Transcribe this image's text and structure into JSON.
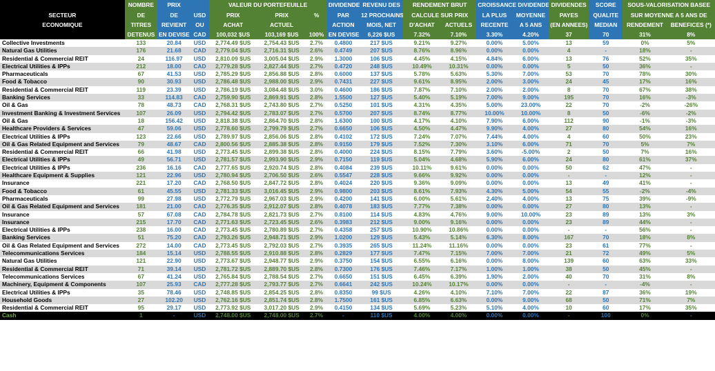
{
  "colors": {
    "green": "#548235",
    "blue": "#2e75b6",
    "header_black": "#000000",
    "row_gray": "#d9d9d9",
    "cash_label": "#70ad47"
  },
  "header": {
    "secteur": [
      "SECTEUR",
      "ECONOMIQUE"
    ],
    "nombre": [
      "NOMBRE",
      "DE",
      "TITRES",
      "DETENUS"
    ],
    "prix": [
      "PRIX",
      "DE",
      "REVIENT",
      "EN DEVISE"
    ],
    "usd": [
      "USD",
      "OU",
      "CAD"
    ],
    "valeur_group": "VALEUR DU PORTEFEUILLE",
    "prix_achat": [
      "PRIX",
      "ACHAT",
      "100,032 $US"
    ],
    "prix_actuel": [
      "PRIX",
      "ACTUEL",
      "103,169 $US"
    ],
    "pct": [
      "%",
      "100%"
    ],
    "dividende": [
      "DIVIDENDE",
      "PAR",
      "ACTION",
      "EN DEVISE"
    ],
    "revenu": [
      "REVENU DES",
      "12 PROCHAINS",
      "MOIS, NET",
      "6,226 $US"
    ],
    "rendement_group": "RENDEMENT BRUT",
    "rendement_sub": "CALCULE SUR PRIX",
    "rend_achat": [
      "D'ACHAT",
      "7.32%"
    ],
    "rend_actuels": [
      "ACTUELS",
      "7.10%"
    ],
    "croissance_group": "CROISSANCE DIVIDENDES",
    "croissance_recente": [
      "LA PLUS",
      "RECENTE",
      "3.30%"
    ],
    "croissance_moy": [
      "MOYENNE",
      "A 5 ANS",
      "4.20%"
    ],
    "div_payes": [
      "DIVIDENDES",
      "PAYES",
      "(EN ANNEES)",
      "37"
    ],
    "score": [
      "SCORE",
      "QUALITE",
      "MEDIAN",
      "70"
    ],
    "souseval_group": "SOUS-VALORISATION BASEE",
    "souseval_sub": "SUR MOYENNE A 5 ANS DE",
    "sv_rend": [
      "RENDEMENT",
      "31%"
    ],
    "sv_benef": [
      "BENEFICES (*)",
      "8%"
    ]
  },
  "rows": [
    [
      "Collective Investments",
      "133",
      "20.84",
      "USD",
      "2,774.49 $US",
      "2,754.43 $US",
      "2.7%",
      "0.4800",
      "217 $US",
      "9.21%",
      "9.27%",
      "0.00%",
      "5.00%",
      "13",
      "59",
      "0%",
      "5%"
    ],
    [
      "Natural Gas Utilities",
      "176",
      "21.68",
      "CAD",
      "2,779.04 $US",
      "2,716.31 $US",
      "2.6%",
      "0.4749",
      "207 $US",
      "8.76%",
      "8.96%",
      "0.00%",
      "0.00%",
      "4",
      "-",
      "18%",
      "-"
    ],
    [
      "Residential & Commercial REIT",
      "24",
      "116.97",
      "USD",
      "2,810.09 $US",
      "3,005.04 $US",
      "2.9%",
      "1.3000",
      "106 $US",
      "4.45%",
      "4.15%",
      "4.84%",
      "6.00%",
      "13",
      "76",
      "52%",
      "35%"
    ],
    [
      "Electrical Utilities & IPPs",
      "212",
      "18.00",
      "CAD",
      "2,779.28 $US",
      "2,827.44 $US",
      "2.7%",
      "0.4720",
      "248 $US",
      "10.49%",
      "10.31%",
      "0.00%",
      "0.00%",
      "5",
      "50",
      "36%",
      "-"
    ],
    [
      "Pharmaceuticals",
      "67",
      "41.53",
      "USD",
      "2,785.29 $US",
      "2,856.88 $US",
      "2.8%",
      "0.6000",
      "137 $US",
      "5.78%",
      "5.63%",
      "5.30%",
      "7.00%",
      "53",
      "70",
      "78%",
      "30%"
    ],
    [
      "Food & Tobacco",
      "90",
      "30.93",
      "USD",
      "2,786.48 $US",
      "2,988.00 $US",
      "2.9%",
      "0.7431",
      "227 $US",
      "9.61%",
      "8.95%",
      "2.00%",
      "3.00%",
      "24",
      "45",
      "17%",
      "16%"
    ],
    [
      "Residential & Commercial REIT",
      "119",
      "23.39",
      "USD",
      "2,786.19 $US",
      "3,084.48 $US",
      "3.0%",
      "0.4600",
      "186 $US",
      "7.87%",
      "7.10%",
      "2.00%",
      "2.00%",
      "8",
      "70",
      "67%",
      "38%"
    ],
    [
      "Banking Services",
      "33",
      "114.83",
      "CAD",
      "2,759.90 $US",
      "2,869.91 $US",
      "2.8%",
      "1.5500",
      "127 $US",
      "5.40%",
      "5.19%",
      "7.00%",
      "9.00%",
      "195",
      "70",
      "16%",
      "-3%"
    ],
    [
      "Oil & Gas",
      "78",
      "48.73",
      "CAD",
      "2,768.31 $US",
      "2,743.80 $US",
      "2.7%",
      "0.5250",
      "101 $US",
      "4.31%",
      "4.35%",
      "5.00%",
      "23.00%",
      "22",
      "70",
      "-2%",
      "-26%"
    ],
    [
      "Investment Banking & Investment Services",
      "107",
      "26.09",
      "USD",
      "2,794.42 $US",
      "2,783.07 $US",
      "2.7%",
      "0.5700",
      "207 $US",
      "8.74%",
      "8.77%",
      "10.00%",
      "10.00%",
      "8",
      "50",
      "-6%",
      "-2%"
    ],
    [
      "Oil & Gas",
      "18",
      "156.42",
      "USD",
      "2,818.38 $US",
      "2,864.70 $US",
      "2.8%",
      "1.6300",
      "100 $US",
      "4.17%",
      "4.10%",
      "7.90%",
      "6.00%",
      "112",
      "90",
      "-1%",
      "-3%"
    ],
    [
      "Healthcare Providers & Services",
      "47",
      "59.06",
      "USD",
      "2,778.60 $US",
      "2,799.79 $US",
      "2.7%",
      "0.6650",
      "106 $US",
      "4.50%",
      "4.47%",
      "9.90%",
      "4.00%",
      "27",
      "80",
      "54%",
      "16%"
    ],
    [
      "Electrical Utilities & IPPs",
      "123",
      "22.66",
      "USD",
      "2,789.97 $US",
      "2,856.06 $US",
      "2.8%",
      "0.4102",
      "172 $US",
      "7.24%",
      "7.07%",
      "7.44%",
      "4.00%",
      "4",
      "60",
      "50%",
      "23%"
    ],
    [
      "Oil & Gas Related Equipment and Services",
      "79",
      "48.67",
      "CAD",
      "2,800.56 $US",
      "2,885.38 $US",
      "2.8%",
      "0.9150",
      "179 $US",
      "7.52%",
      "7.30%",
      "3.10%",
      "6.00%",
      "71",
      "70",
      "5%",
      "7%"
    ],
    [
      "Residential & Commercial REIT",
      "66",
      "41.98",
      "USD",
      "2,773.45 $US",
      "2,899.38 $US",
      "2.8%",
      "0.4000",
      "224 $US",
      "8.15%",
      "7.79%",
      "3.60%",
      "-5.00%",
      "2",
      "50",
      "7%",
      "16%"
    ],
    [
      "Electrical Utilities & IPPs",
      "49",
      "56.71",
      "USD",
      "2,781.57 $US",
      "2,993.90 $US",
      "2.9%",
      "0.7150",
      "119 $US",
      "5.04%",
      "4.68%",
      "5.90%",
      "6.00%",
      "24",
      "80",
      "61%",
      "37%"
    ],
    [
      "Electrical Utilities & IPPs",
      "236",
      "16.16",
      "CAD",
      "2,777.65 $US",
      "2,920.74 $US",
      "2.8%",
      "0.4084",
      "239 $US",
      "10.11%",
      "9.61%",
      "0.00%",
      "0.00%",
      "50",
      "62",
      "47%",
      "-"
    ],
    [
      "Healthcare Equipment & Supplies",
      "121",
      "22.96",
      "USD",
      "2,780.94 $US",
      "2,706.50 $US",
      "2.6%",
      "0.5547",
      "228 $US",
      "9.66%",
      "9.92%",
      "0.00%",
      "0.00%",
      "-",
      "-",
      "12%",
      "-"
    ],
    [
      "Insurance",
      "221",
      "17.20",
      "CAD",
      "2,768.50 $US",
      "2,847.72 $US",
      "2.8%",
      "0.4024",
      "220 $US",
      "9.36%",
      "9.09%",
      "0.00%",
      "0.00%",
      "13",
      "49",
      "41%",
      "-"
    ],
    [
      "Food & Tobacco",
      "61",
      "45.55",
      "USD",
      "2,781.33 $US",
      "3,016.45 $US",
      "2.9%",
      "0.9800",
      "203 $US",
      "8.61%",
      "7.93%",
      "4.30%",
      "5.00%",
      "54",
      "55",
      "-2%",
      "-4%"
    ],
    [
      "Pharmaceuticals",
      "99",
      "27.98",
      "USD",
      "2,772.79 $US",
      "2,967.03 $US",
      "2.9%",
      "0.4200",
      "141 $US",
      "6.00%",
      "5.61%",
      "2.40%",
      "4.00%",
      "13",
      "75",
      "39%",
      "-9%"
    ],
    [
      "Oil & Gas Related Equipment and Services",
      "181",
      "21.00",
      "CAD",
      "2,776.35 $US",
      "2,912.07 $US",
      "2.8%",
      "0.4078",
      "183 $US",
      "7.77%",
      "7.38%",
      "0.00%",
      "0.00%",
      "27",
      "80",
      "13%",
      "-"
    ],
    [
      "Insurance",
      "57",
      "67.08",
      "CAD",
      "2,784.78 $US",
      "2,821.73 $US",
      "2.7%",
      "0.8100",
      "114 $US",
      "4.83%",
      "4.76%",
      "9.00%",
      "10.00%",
      "23",
      "89",
      "13%",
      "3%"
    ],
    [
      "Insurance",
      "215",
      "17.70",
      "CAD",
      "2,771.63 $US",
      "2,723.45 $US",
      "2.6%",
      "0.3983",
      "212 $US",
      "9.00%",
      "9.16%",
      "0.00%",
      "0.00%",
      "23",
      "89",
      "44%",
      "-"
    ],
    [
      "Electrical Utilities & IPPs",
      "238",
      "16.00",
      "CAD",
      "2,773.45 $US",
      "2,780.89 $US",
      "2.7%",
      "0.4358",
      "257 $US",
      "10.90%",
      "10.86%",
      "0.00%",
      "0.00%",
      "-",
      "-",
      "56%",
      "-"
    ],
    [
      "Banking Services",
      "51",
      "75.20",
      "CAD",
      "2,793.26 $US",
      "2,948.71 $US",
      "2.9%",
      "1.0200",
      "129 $US",
      "5.43%",
      "5.14%",
      "6.30%",
      "8.00%",
      "167",
      "70",
      "18%",
      "8%"
    ],
    [
      "Oil & Gas Related Equipment and Services",
      "272",
      "14.00",
      "CAD",
      "2,773.45 $US",
      "2,792.03 $US",
      "2.7%",
      "0.3935",
      "265 $US",
      "11.24%",
      "11.16%",
      "0.00%",
      "0.00%",
      "23",
      "61",
      "77%",
      "-"
    ],
    [
      "Telecommunications Services",
      "184",
      "15.14",
      "USD",
      "2,788.55 $US",
      "2,910.88 $US",
      "2.8%",
      "0.2829",
      "177 $US",
      "7.47%",
      "7.15%",
      "7.00%",
      "7.00%",
      "21",
      "72",
      "49%",
      "5%"
    ],
    [
      "Natural Gas Utilities",
      "121",
      "22.90",
      "USD",
      "2,773.67 $US",
      "2,948.77 $US",
      "2.9%",
      "0.3750",
      "154 $US",
      "6.55%",
      "6.16%",
      "0.00%",
      "8.00%",
      "139",
      "60",
      "63%",
      "33%"
    ],
    [
      "Residential & Commercial REIT",
      "71",
      "39.14",
      "USD",
      "2,781.72 $US",
      "2,889.70 $US",
      "2.8%",
      "0.7300",
      "176 $US",
      "7.46%",
      "7.17%",
      "1.00%",
      "1.00%",
      "38",
      "50",
      "45%",
      "-"
    ],
    [
      "Telecommunications Services",
      "67",
      "41.24",
      "USD",
      "2,765.84 $US",
      "2,788.54 $US",
      "2.7%",
      "0.6650",
      "151 $US",
      "6.45%",
      "6.39%",
      "1.90%",
      "2.00%",
      "40",
      "70",
      "31%",
      "8%"
    ],
    [
      "Machinery, Equipment & Components",
      "107",
      "25.93",
      "CAD",
      "2,777.28 $US",
      "2,793.77 $US",
      "2.7%",
      "0.6641",
      "242 $US",
      "10.24%",
      "10.17%",
      "0.00%",
      "0.00%",
      "-",
      "-",
      "-4%",
      "-"
    ],
    [
      "Electrical Utilities & IPPs",
      "35",
      "78.46",
      "USD",
      "2,748.85 $US",
      "2,854.25 $US",
      "2.8%",
      "0.8350",
      "99 $US",
      "4.26%",
      "4.10%",
      "7.10%",
      "7.00%",
      "22",
      "87",
      "36%",
      "19%"
    ],
    [
      "Household Goods",
      "27",
      "102.20",
      "USD",
      "2,762.16 $US",
      "2,851.74 $US",
      "2.8%",
      "1.7500",
      "161 $US",
      "6.85%",
      "6.63%",
      "0.00%",
      "9.00%",
      "68",
      "50",
      "71%",
      "7%"
    ],
    [
      "Residential & Commercial REIT",
      "95",
      "29.17",
      "USD",
      "2,773.92 $US",
      "3,017.20 $US",
      "2.9%",
      "0.4150",
      "134 $US",
      "5.69%",
      "5.23%",
      "5.10%",
      "4.00%",
      "10",
      "60",
      "17%",
      "35%"
    ],
    [
      "Cash",
      "1",
      "-",
      "USD",
      "2,748.00 $US",
      "2,748.00 $US",
      "2.7%",
      "-",
      "110 $US",
      "4.00%",
      "4.00%",
      "0.00%",
      "0.00%",
      "-",
      "100",
      "0%",
      "-"
    ]
  ]
}
